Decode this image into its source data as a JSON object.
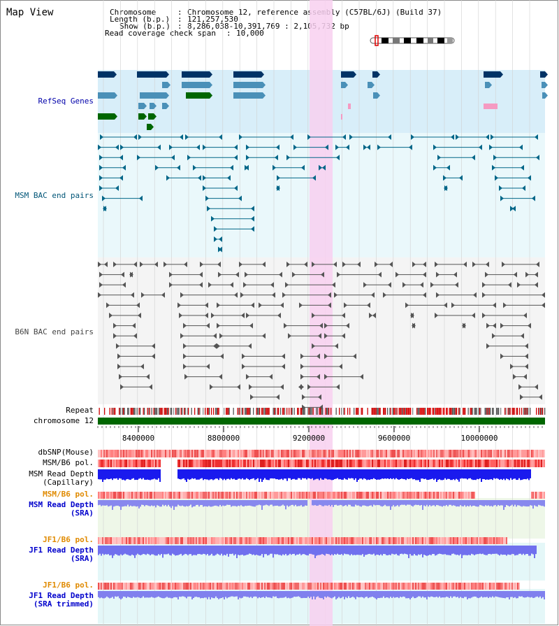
{
  "view_title": "Map View",
  "header": {
    "chromosome_label": "Chromosome",
    "chromosome_value": "Chromosome 12, reference assembly (C57BL/6J) (Build 37)",
    "length_label": "Length (b.p.)",
    "length_value": "121,257,530",
    "show_label": "Show (b.p.)",
    "show_value": "8,286,038-10,391,769 : 2,105,732 bp",
    "coverage_label": "Read coverage check span",
    "coverage_value": "10,000"
  },
  "tracks": {
    "refseq": "RefSeq Genes",
    "msm_bac": "MSM BAC end pairs",
    "b6n_bac": "B6N BAC end pairs",
    "repeat": "Repeat",
    "chromosome": "chromosome 12",
    "dbsnp": "dbSNP(Mouse)",
    "msm_b6_pol": "MSM/B6 pol.",
    "msm_depth_cap_1": "MSM Read Depth",
    "msm_depth_cap_2": "(Capillary)",
    "msm_b6_pol2": "MSM/B6 pol.",
    "msm_depth_sra_1": "MSM Read Depth",
    "msm_depth_sra_2": "(SRA)",
    "jf1_b6_pol": "JF1/B6 pol.",
    "jf1_depth_sra_1": "JF1 Read Depth",
    "jf1_depth_sra_2": "(SRA)",
    "jf1_b6_pol2": "JF1/B6 pol.",
    "jf1_depth_trim_1": "JF1 Read Depth",
    "jf1_depth_trim_2": "(SRA trimmed)"
  },
  "axis": {
    "ticks": [
      "8400000",
      "8800000",
      "9200000",
      "9600000",
      "10000000"
    ]
  },
  "colors": {
    "refseq_label": "#0000aa",
    "msm_bac_label": "#005577",
    "b6n_bac_label": "#444444",
    "orange_label": "#e08a00",
    "blue_label": "#0000cc",
    "highlight": "#f8d0f0",
    "chromosome_bar": "#006600"
  }
}
